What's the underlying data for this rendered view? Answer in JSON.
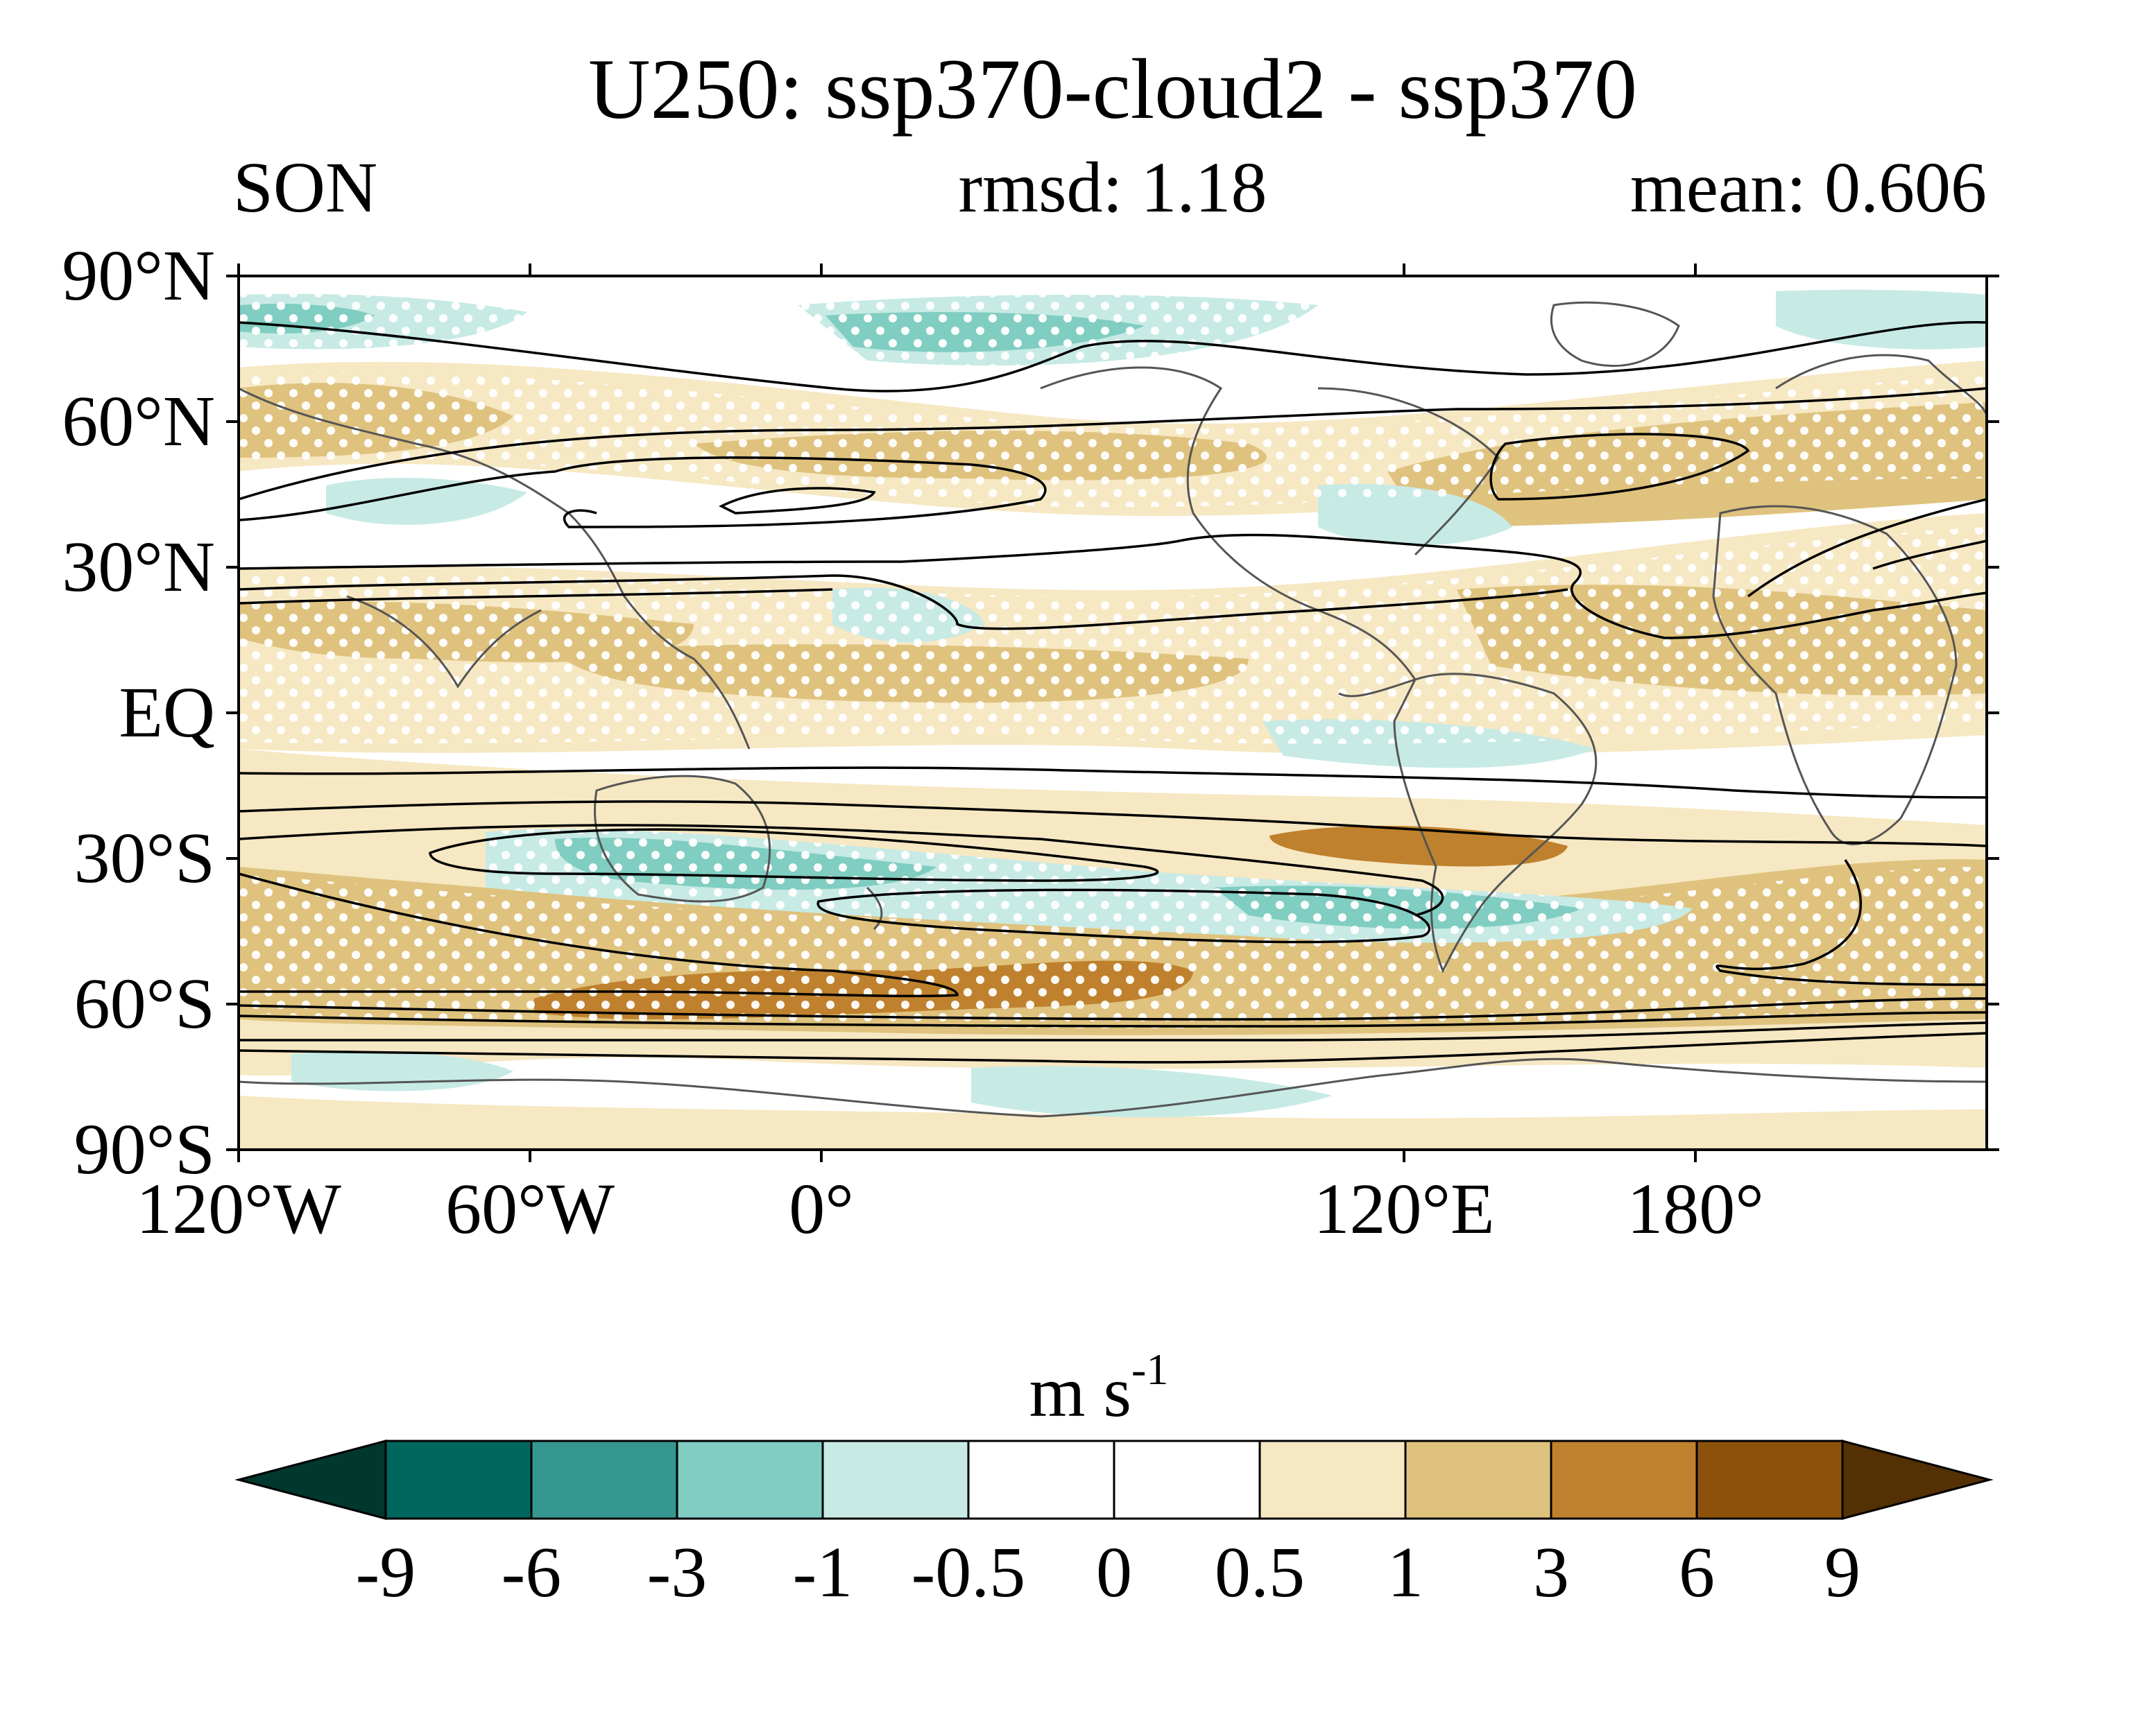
{
  "title": "U250: ssp370-cloud2 - ssp370",
  "subtitle": {
    "left": "SON",
    "center": "rmsd: 1.18",
    "right": "mean: 0.606"
  },
  "map": {
    "projection": "equirectangular",
    "central_longitude": 60,
    "lat_range": [
      -90,
      90
    ],
    "lat_ticks": [
      {
        "lat": 90,
        "label": "90°N"
      },
      {
        "lat": 60,
        "label": "60°N"
      },
      {
        "lat": 30,
        "label": "30°N"
      },
      {
        "lat": 0,
        "label": "EQ"
      },
      {
        "lat": -30,
        "label": "30°S"
      },
      {
        "lat": -60,
        "label": "60°S"
      },
      {
        "lat": -90,
        "label": "90°S"
      }
    ],
    "lon_ticks": [
      {
        "lon": 120,
        "label": "120°E"
      },
      {
        "lon": 180,
        "label": "180°"
      },
      {
        "lon": -120,
        "label": "120°W"
      },
      {
        "lon": -60,
        "label": "60°W"
      },
      {
        "lon": 0,
        "label": "0°"
      }
    ],
    "stippling": "white dots mark significant differences",
    "contour_color": "#000000",
    "coastline_color": "#555555"
  },
  "colorbar": {
    "units_base": "m s",
    "units_exponent": "-1",
    "levels": [
      "-9",
      "-6",
      "-3",
      "-1",
      "-0.5",
      "0",
      "0.5",
      "1",
      "3",
      "6",
      "9"
    ],
    "colors": [
      "#00382e",
      "#01665e",
      "#35978f",
      "#80cdc1",
      "#c7eae5",
      "#ffffff",
      "#ffffff",
      "#f6e8c3",
      "#dfc27d",
      "#bf812d",
      "#8c510a",
      "#543005"
    ]
  }
}
